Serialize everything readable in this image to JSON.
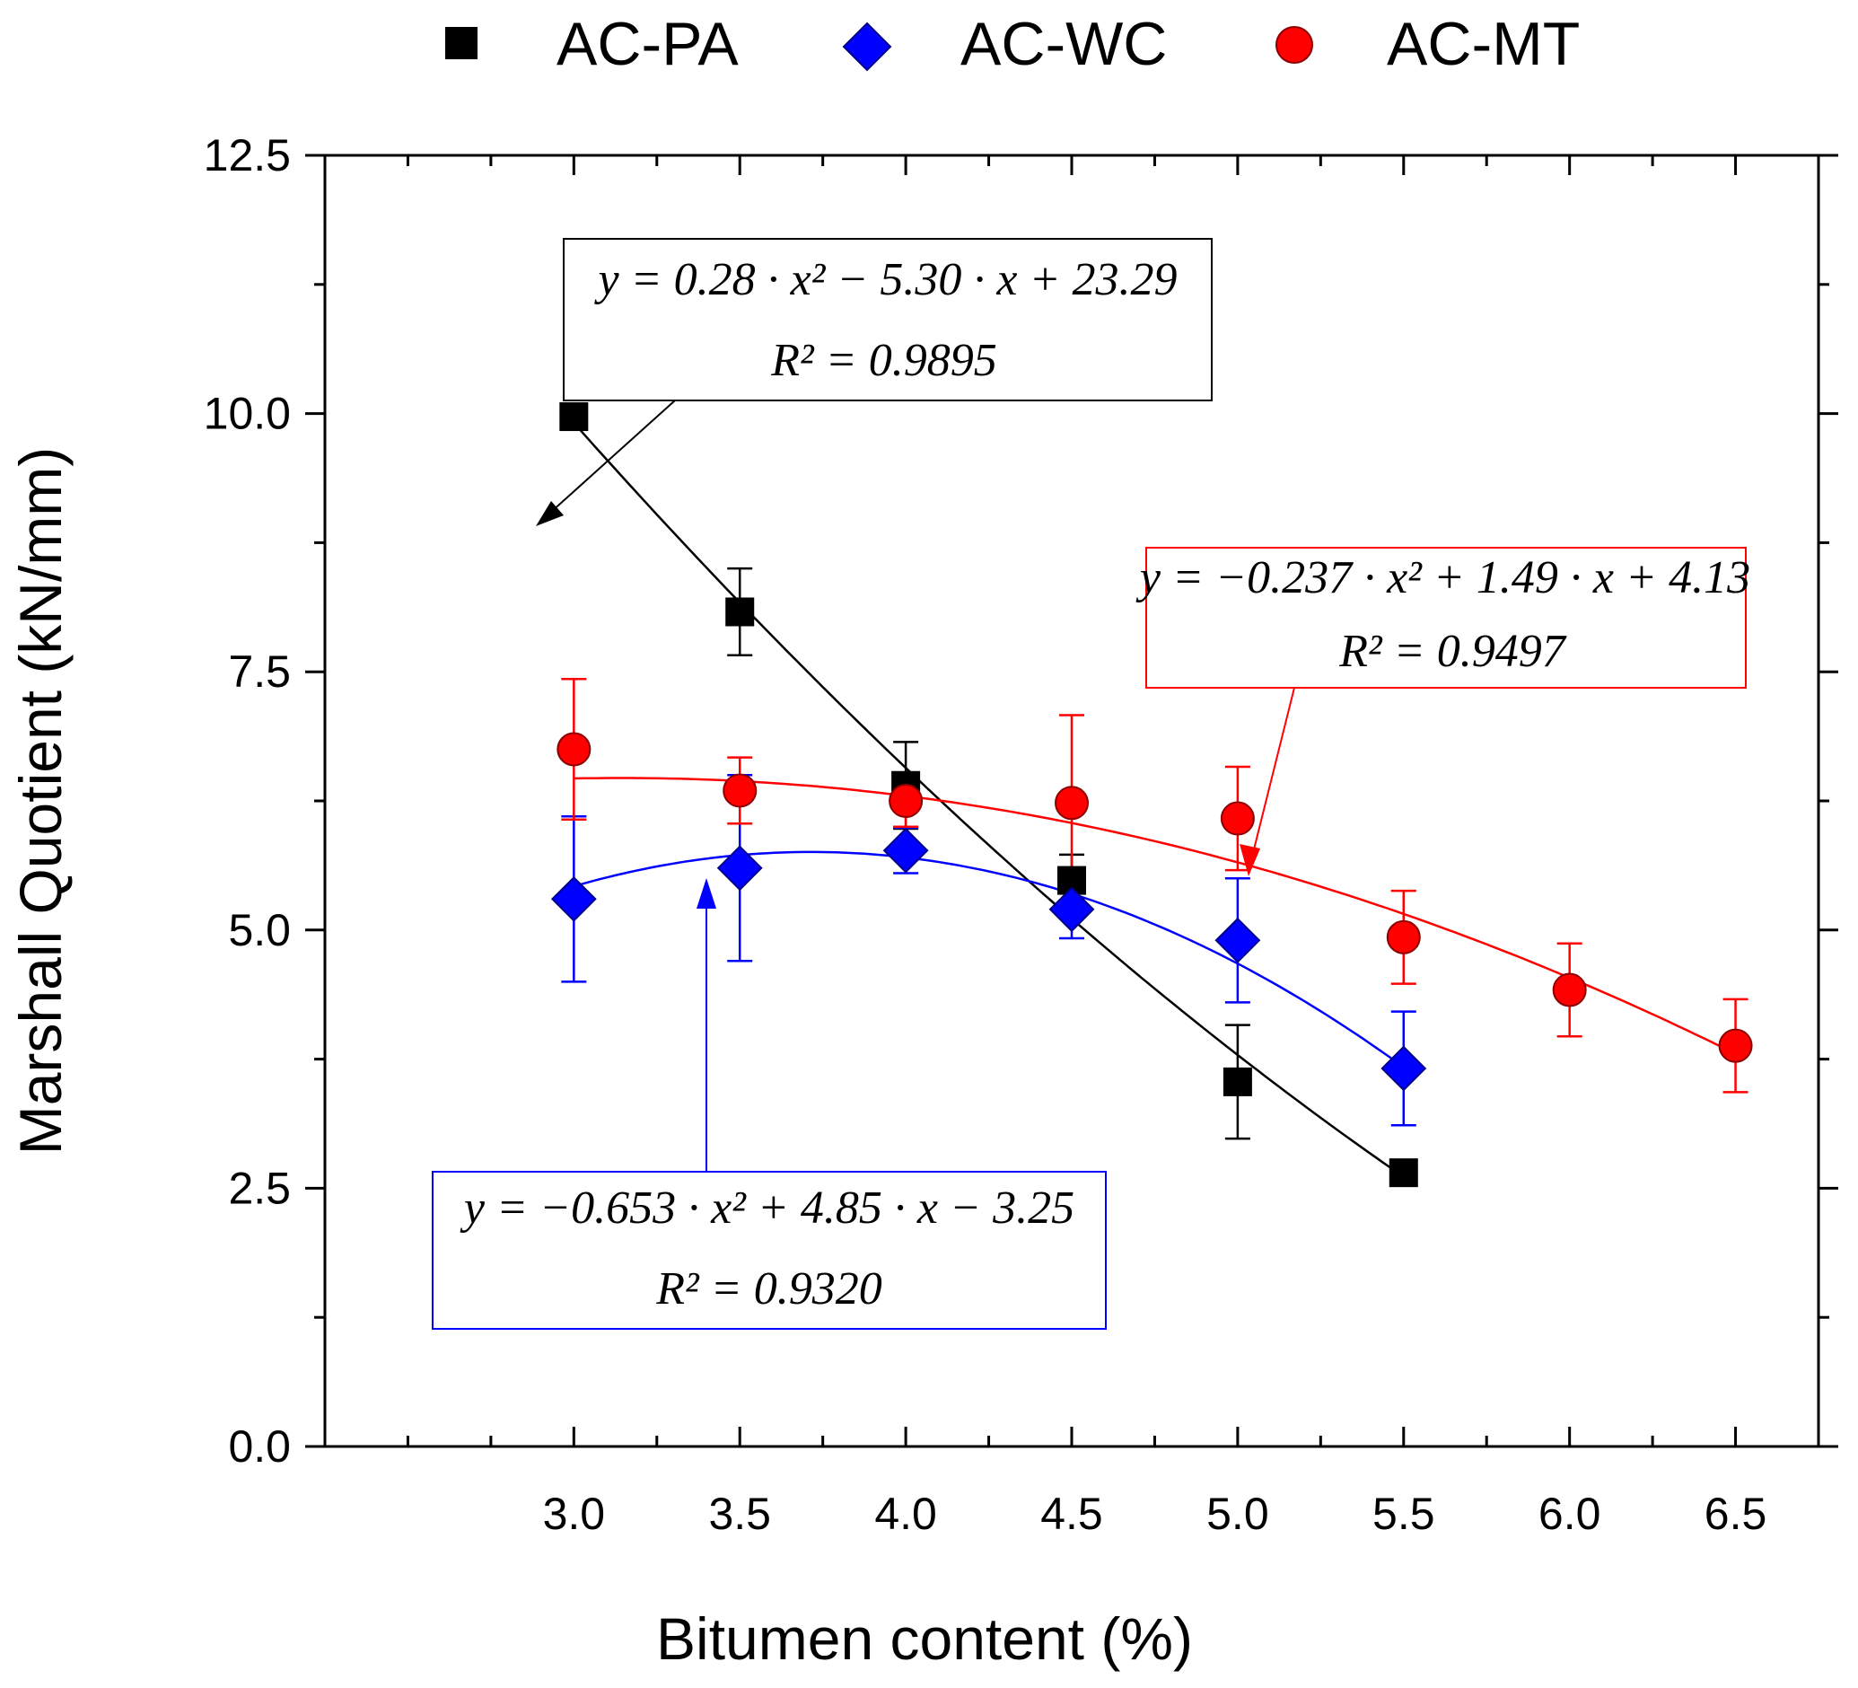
{
  "chart_data": {
    "type": "scatter",
    "xlabel": "Bitumen content (%)",
    "ylabel": "Marshall Quotient (kN/mm)",
    "xlim": [
      2.25,
      6.75
    ],
    "ylim": [
      0.0,
      12.5
    ],
    "x_ticks": [
      "3.0",
      "3.5",
      "4.0",
      "4.5",
      "5.0",
      "5.5",
      "6.0",
      "6.5"
    ],
    "y_ticks": [
      "0.0",
      "2.5",
      "5.0",
      "7.5",
      "10.0",
      "12.5"
    ],
    "legend": [
      "AC-PA",
      "AC-WC",
      "AC-MT"
    ],
    "legend_position": "top",
    "grid": false,
    "series": [
      {
        "name": "AC-PA",
        "marker": "square",
        "color": "#000000",
        "x": [
          3.0,
          3.5,
          4.0,
          4.5,
          5.0,
          5.5
        ],
        "y": [
          9.97,
          8.08,
          6.4,
          5.48,
          3.53,
          2.65
        ],
        "err": [
          0.0,
          0.42,
          0.42,
          0.25,
          0.55,
          0.0
        ],
        "fit": {
          "a": 0.28,
          "b": -5.3,
          "c": 23.29,
          "x_range": [
            3.0,
            5.5
          ]
        },
        "equation": "y = 0.28 · x² − 5.30 · x + 23.29",
        "r2": "R² = 0.9895"
      },
      {
        "name": "AC-WC",
        "marker": "diamond",
        "color": "#0000ff",
        "x": [
          3.0,
          3.5,
          4.0,
          4.5,
          5.0,
          5.5
        ],
        "y": [
          5.3,
          5.6,
          5.77,
          5.2,
          4.9,
          3.66
        ],
        "err": [
          0.8,
          0.9,
          0.22,
          0.28,
          0.6,
          0.55
        ],
        "fit": {
          "a": -0.653,
          "b": 4.85,
          "c": -3.25,
          "x_range": [
            3.0,
            5.5
          ]
        },
        "equation": "y = −0.653 · x² + 4.85 · x − 3.25",
        "r2": "R² = 0.9320"
      },
      {
        "name": "AC-MT",
        "marker": "circle",
        "color": "#ff0000",
        "x": [
          3.0,
          3.5,
          4.0,
          4.5,
          5.0,
          5.5,
          6.0,
          6.5
        ],
        "y": [
          6.75,
          6.35,
          6.25,
          6.23,
          6.08,
          4.93,
          4.42,
          3.88
        ],
        "err": [
          0.68,
          0.32,
          0.25,
          0.85,
          0.5,
          0.45,
          0.45,
          0.45
        ],
        "fit": {
          "a": -0.237,
          "b": 1.49,
          "c": 4.13,
          "x_range": [
            3.0,
            6.5
          ]
        },
        "equation": "y = −0.237 · x² + 1.49 · x + 4.13",
        "r2": "R² = 0.9497"
      }
    ]
  }
}
